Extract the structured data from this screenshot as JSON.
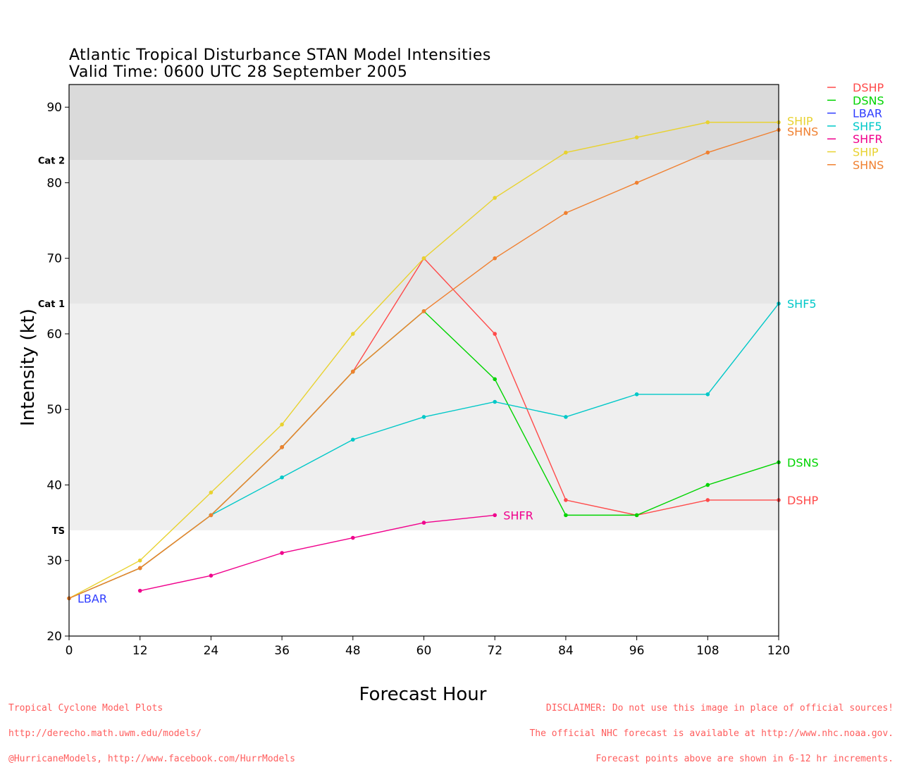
{
  "title_line1": "Atlantic Tropical Disturbance STAN Model Intensities",
  "title_line2": "Valid Time: 0600 UTC 28 September 2005",
  "footer": {
    "left": [
      "Tropical Cyclone Model Plots",
      "http://derecho.math.uwm.edu/models/",
      "@HurricaneModels, http://www.facebook.com/HurrModels"
    ],
    "right": [
      "DISCLAIMER: Do not use this image in place of official sources!",
      "The official NHC forecast is available at http://www.nhc.noaa.gov.",
      "Forecast points above are shown in 6-12 hr increments."
    ]
  },
  "chart_data": {
    "type": "line",
    "title": "Atlantic Tropical Disturbance STAN Model Intensities",
    "subtitle": "Valid Time: 0600 UTC 28 September 2005",
    "xlabel": "Forecast Hour",
    "ylabel": "Intensity (kt)",
    "xlim": [
      0,
      120
    ],
    "ylim": [
      20,
      93
    ],
    "xticks": [
      0,
      12,
      24,
      36,
      48,
      60,
      72,
      84,
      96,
      108,
      120
    ],
    "yticks": [
      20,
      30,
      40,
      50,
      60,
      70,
      80,
      90
    ],
    "grid": false,
    "legend_position": "right",
    "bands": [
      {
        "label": "TS",
        "from": 34,
        "to": 64,
        "color": "#efefef"
      },
      {
        "label": "Cat 1",
        "from": 64,
        "to": 83,
        "color": "#e6e6e6"
      },
      {
        "label": "Cat 2",
        "from": 83,
        "to": 93,
        "color": "#dadada"
      }
    ],
    "series": [
      {
        "name": "DSHP",
        "color": "#ff4a4a",
        "x": [
          0,
          12,
          24,
          36,
          48,
          60,
          72,
          84,
          96,
          108,
          120
        ],
        "y": [
          25,
          29,
          36,
          45,
          55,
          70,
          60,
          38,
          36,
          38,
          38
        ],
        "end_label": "DSHP"
      },
      {
        "name": "DSNS",
        "color": "#00d400",
        "x": [
          0,
          12,
          24,
          36,
          48,
          60,
          72,
          84,
          96,
          108,
          120
        ],
        "y": [
          25,
          29,
          36,
          45,
          55,
          63,
          54,
          36,
          36,
          40,
          43
        ],
        "end_label": "DSNS"
      },
      {
        "name": "LBAR",
        "color": "#2e3cff",
        "x": [
          0
        ],
        "y": [
          25
        ],
        "end_label": "LBAR"
      },
      {
        "name": "SHF5",
        "color": "#00c8c8",
        "x": [
          24,
          36,
          48,
          60,
          72,
          84,
          96,
          108,
          120
        ],
        "y": [
          36,
          41,
          46,
          49,
          51,
          49,
          52,
          52,
          64
        ],
        "end_label": "SHF5"
      },
      {
        "name": "SHFR",
        "color": "#f0008c",
        "x": [
          12,
          24,
          36,
          48,
          60,
          72
        ],
        "y": [
          26,
          28,
          31,
          33,
          35,
          36
        ],
        "end_label": "SHFR"
      },
      {
        "name": "SHIP",
        "color": "#e8d230",
        "x": [
          0,
          12,
          24,
          36,
          48,
          60,
          72,
          84,
          96,
          108,
          120
        ],
        "y": [
          25,
          30,
          39,
          48,
          60,
          70,
          78,
          84,
          86,
          88,
          88
        ],
        "end_label": "SHIP"
      },
      {
        "name": "SHNS",
        "color": "#f08030",
        "x": [
          0,
          12,
          24,
          36,
          48,
          60,
          72,
          84,
          96,
          108,
          120
        ],
        "y": [
          25,
          29,
          36,
          45,
          55,
          63,
          70,
          76,
          80,
          84,
          87
        ],
        "end_label": "SHNS"
      }
    ]
  }
}
